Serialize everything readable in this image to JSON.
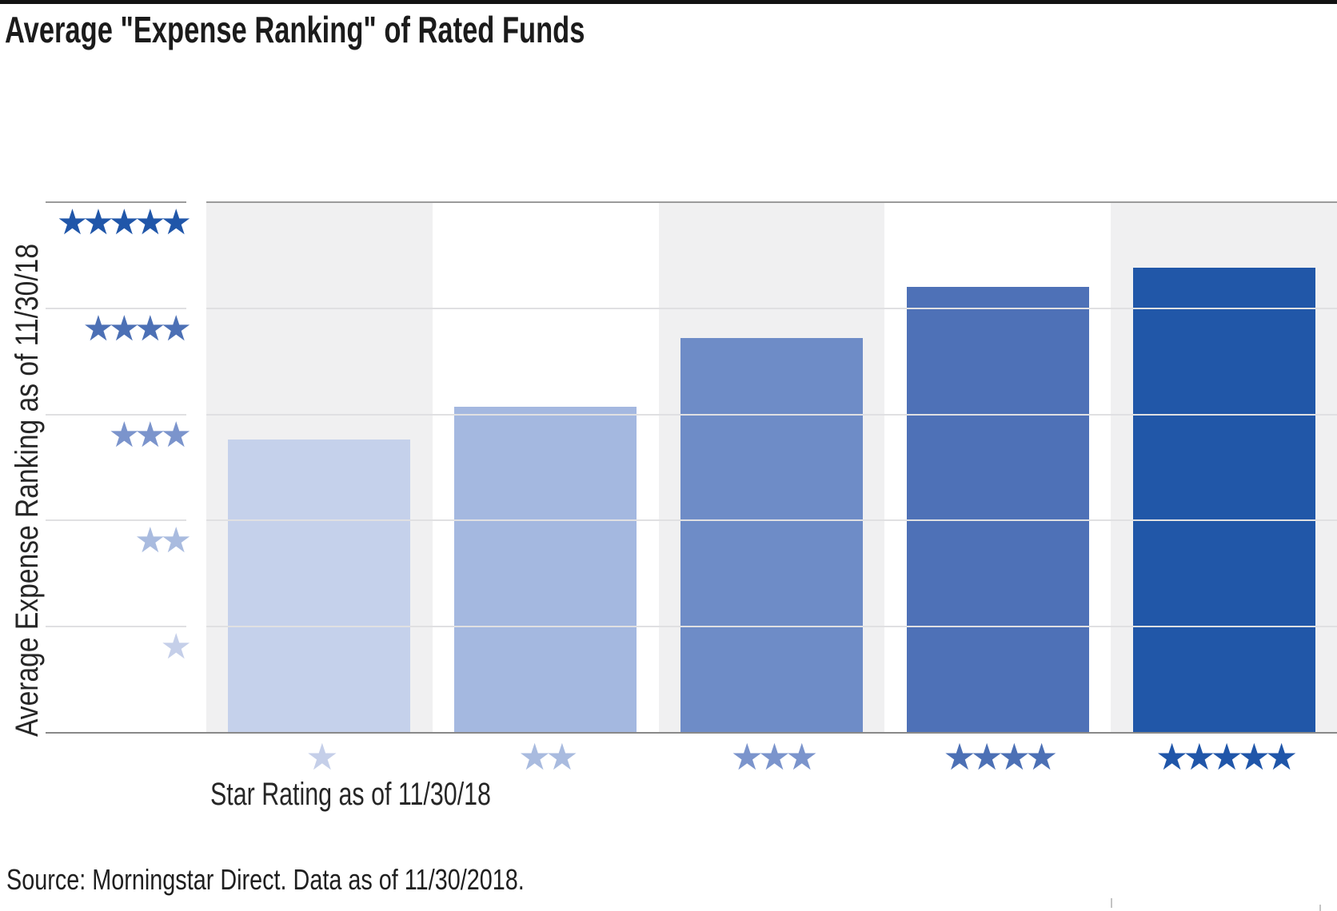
{
  "title": "Average \"Expense Ranking\" of Rated Funds",
  "y_axis_label": "Average Expense Ranking as of 11/30/18",
  "x_axis_label": "Star Rating as of 11/30/18",
  "source": "Source: Morningstar Direct. Data as of 11/30/2018.",
  "star_glyph": "★",
  "colors": {
    "bars": [
      "#c5d1eb",
      "#a4b8e0",
      "#6e8cc7",
      "#4e71b7",
      "#2157a8"
    ],
    "star_labels": [
      "#c5cfe9",
      "#a9bbdf",
      "#7b94cc",
      "#4c70b5",
      "#2056a9"
    ],
    "band_shaded": "#f0f0f1",
    "band_plain": "#ffffff",
    "gridline_light": "#e0e0e2",
    "gridline_dark": "#9b9b9b",
    "axis_line": "#898989",
    "top_rule": "#121212"
  },
  "chart_data": {
    "type": "bar",
    "title": "Average \"Expense Ranking\" of Rated Funds",
    "xlabel": "Star Rating as of 11/30/18",
    "ylabel": "Average Expense Ranking as of 11/30/18",
    "categories": [
      "1 star",
      "2 stars",
      "3 stars",
      "4 stars",
      "5 stars"
    ],
    "categories_star_counts": [
      1,
      2,
      3,
      4,
      5
    ],
    "values": [
      2.76,
      3.07,
      3.72,
      4.2,
      4.38
    ],
    "y_tick_star_counts": [
      1,
      2,
      3,
      4,
      5
    ],
    "ylim": [
      0,
      5
    ],
    "grid": "horizontal",
    "legend": "none",
    "note": "y-axis ticks and x-axis categories are shown as Morningstar star-rating glyphs; bars shade darker blue as rating increases"
  }
}
